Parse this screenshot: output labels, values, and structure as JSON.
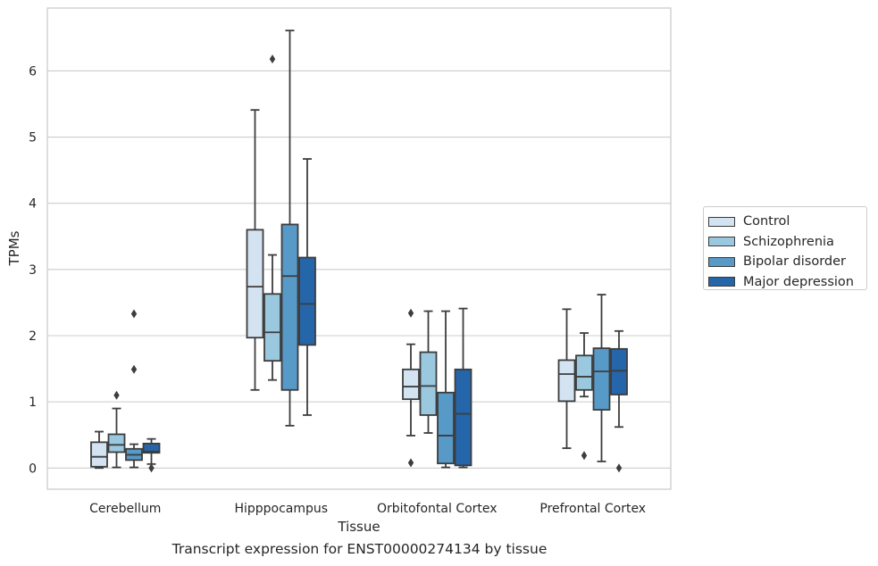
{
  "chart_data": {
    "type": "box",
    "title": "",
    "caption": "Transcript expression for ENST00000274134 by tissue",
    "xlabel": "Tissue",
    "ylabel": "TPMs",
    "ylim": [
      -0.32,
      6.95
    ],
    "yticks": [
      0,
      1,
      2,
      3,
      4,
      5,
      6
    ],
    "grid": "horizontal",
    "legend_position": "right",
    "categories": [
      "Cerebellum",
      "Hipppocampus",
      "Orbitofontal Cortex",
      "Prefrontal Cortex"
    ],
    "series": [
      {
        "name": "Control",
        "color": "#d3e3f1",
        "boxes": [
          {
            "whisker_low": 0.0,
            "q1": 0.02,
            "median": 0.17,
            "q3": 0.39,
            "whisker_high": 0.55,
            "outliers": []
          },
          {
            "whisker_low": 1.18,
            "q1": 1.97,
            "median": 2.74,
            "q3": 3.6,
            "whisker_high": 5.41,
            "outliers": []
          },
          {
            "whisker_low": 0.49,
            "q1": 1.04,
            "median": 1.23,
            "q3": 1.49,
            "whisker_high": 1.87,
            "outliers": [
              2.34,
              0.08
            ]
          },
          {
            "whisker_low": 0.3,
            "q1": 1.01,
            "median": 1.42,
            "q3": 1.63,
            "whisker_high": 2.4,
            "outliers": []
          }
        ]
      },
      {
        "name": "Schizophrenia",
        "color": "#9ac8df",
        "boxes": [
          {
            "whisker_low": 0.01,
            "q1": 0.24,
            "median": 0.35,
            "q3": 0.51,
            "whisker_high": 0.9,
            "outliers": [
              1.1
            ]
          },
          {
            "whisker_low": 1.33,
            "q1": 1.62,
            "median": 2.05,
            "q3": 2.63,
            "whisker_high": 3.22,
            "outliers": [
              6.18
            ]
          },
          {
            "whisker_low": 0.53,
            "q1": 0.8,
            "median": 1.24,
            "q3": 1.75,
            "whisker_high": 2.37,
            "outliers": []
          },
          {
            "whisker_low": 1.08,
            "q1": 1.18,
            "median": 1.38,
            "q3": 1.7,
            "whisker_high": 2.04,
            "outliers": [
              0.19
            ]
          }
        ]
      },
      {
        "name": "Bipolar disorder",
        "color": "#5799c7",
        "boxes": [
          {
            "whisker_low": 0.01,
            "q1": 0.12,
            "median": 0.2,
            "q3": 0.29,
            "whisker_high": 0.36,
            "outliers": [
              2.33,
              1.49
            ]
          },
          {
            "whisker_low": 0.64,
            "q1": 1.18,
            "median": 2.9,
            "q3": 3.68,
            "whisker_high": 6.61,
            "outliers": []
          },
          {
            "whisker_low": 0.01,
            "q1": 0.07,
            "median": 0.49,
            "q3": 1.14,
            "whisker_high": 2.37,
            "outliers": []
          },
          {
            "whisker_low": 0.1,
            "q1": 0.88,
            "median": 1.46,
            "q3": 1.81,
            "whisker_high": 2.62,
            "outliers": []
          }
        ]
      },
      {
        "name": "Major depression",
        "color": "#2565a9",
        "boxes": [
          {
            "whisker_low": 0.06,
            "q1": 0.23,
            "median": 0.25,
            "q3": 0.37,
            "whisker_high": 0.44,
            "outliers": [
              0.0
            ]
          },
          {
            "whisker_low": 0.8,
            "q1": 1.86,
            "median": 2.48,
            "q3": 3.18,
            "whisker_high": 4.67,
            "outliers": []
          },
          {
            "whisker_low": 0.01,
            "q1": 0.04,
            "median": 0.82,
            "q3": 1.49,
            "whisker_high": 2.41,
            "outliers": []
          },
          {
            "whisker_low": 0.62,
            "q1": 1.11,
            "median": 1.47,
            "q3": 1.8,
            "whisker_high": 2.07,
            "outliers": [
              0.0
            ]
          }
        ]
      }
    ]
  }
}
